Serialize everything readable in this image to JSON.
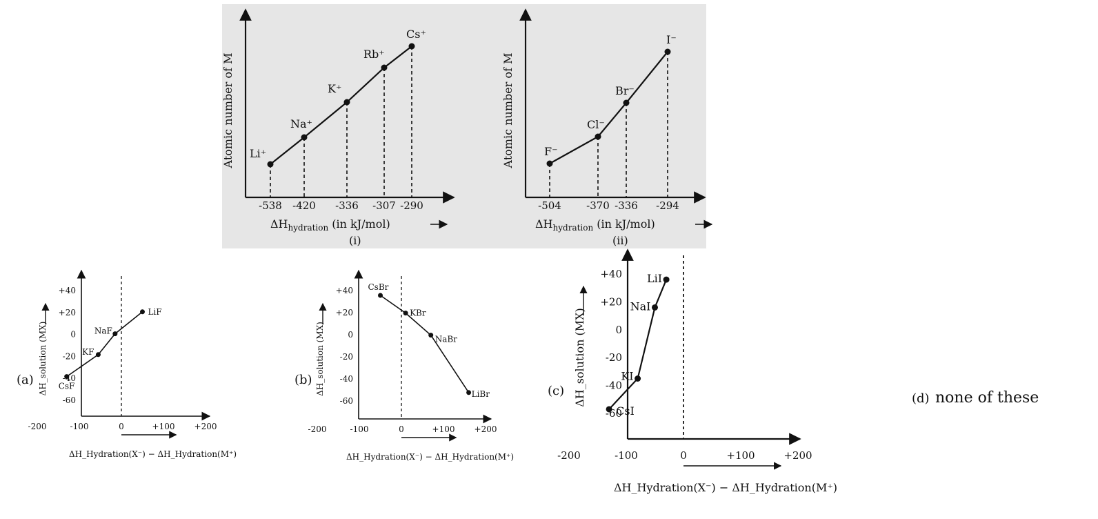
{
  "chart_data": [
    {
      "id": "chart-i",
      "type": "line",
      "caption": "(i)",
      "xlabel": "ΔH",
      "xlabel_sub": "hydration",
      "xlabel_tail": " (in kJ/mol)",
      "ylabel": "Atomic number of M",
      "x_ticks": [
        "-538",
        "-420",
        "-336",
        "-307",
        "-290"
      ],
      "points": [
        {
          "label": "Li+",
          "x": -538
        },
        {
          "label": "Na+",
          "x": -420
        },
        {
          "label": "K+",
          "x": -336
        },
        {
          "label": "Rb+",
          "x": -307
        },
        {
          "label": "Cs+",
          "x": -290
        }
      ]
    },
    {
      "id": "chart-ii",
      "type": "line",
      "caption": "(ii)",
      "xlabel": "ΔH",
      "xlabel_sub": "hydration",
      "xlabel_tail": " (in kJ/mol)",
      "ylabel": "Atomic number of M",
      "x_ticks": [
        "-504",
        "-370",
        "-336",
        "-294"
      ],
      "points": [
        {
          "label": "F−",
          "x": -504
        },
        {
          "label": "Cl−",
          "x": -370
        },
        {
          "label": "Br−",
          "x": -336
        },
        {
          "label": "I−",
          "x": -294
        }
      ]
    },
    {
      "id": "chart-a",
      "type": "line",
      "option": "(a)",
      "xlabel": "ΔH_Hydration(X⁻) − ΔH_Hydration(M⁺)",
      "ylabel": "ΔH_solution (MX)",
      "xlim": [
        -200,
        200
      ],
      "ylim": [
        -60,
        40
      ],
      "x_ticks": [
        "-200",
        "-100",
        "0",
        "+100",
        "+200"
      ],
      "y_ticks": [
        "+40",
        "+20",
        "0",
        "-20",
        "-40",
        "-60"
      ],
      "points": [
        {
          "label": "CsF",
          "x": -130,
          "y": -39
        },
        {
          "label": "KF",
          "x": -55,
          "y": -19
        },
        {
          "label": "NaF",
          "x": -15,
          "y": 0
        },
        {
          "label": "LiF",
          "x": 50,
          "y": 20
        }
      ]
    },
    {
      "id": "chart-b",
      "type": "line",
      "option": "(b)",
      "xlabel": "ΔH_Hydration(X⁻) − ΔH_Hydration(M⁺)",
      "ylabel": "ΔH_solution (MX)",
      "xlim": [
        -200,
        200
      ],
      "ylim": [
        -60,
        40
      ],
      "x_ticks": [
        "-200",
        "-100",
        "0",
        "+100",
        "+200"
      ],
      "y_ticks": [
        "+40",
        "+20",
        "0",
        "-20",
        "-40",
        "-60"
      ],
      "points": [
        {
          "label": "CsBr",
          "x": -50,
          "y": 35
        },
        {
          "label": "KBr",
          "x": 10,
          "y": 19
        },
        {
          "label": "NaBr",
          "x": 70,
          "y": -1
        },
        {
          "label": "LiBr",
          "x": 160,
          "y": -53
        }
      ]
    },
    {
      "id": "chart-c",
      "type": "line",
      "option": "(c)",
      "xlabel": "ΔH_Hydration(X⁻) − ΔH_Hydration(M⁺)",
      "ylabel": "ΔH_solution (MX)",
      "xlim": [
        -200,
        200
      ],
      "ylim": [
        -60,
        40
      ],
      "x_ticks": [
        "-200",
        "-100",
        "0",
        "+100",
        "+200"
      ],
      "y_ticks": [
        "+40",
        "+20",
        "0",
        "-20",
        "-40",
        "-60"
      ],
      "points": [
        {
          "label": "CsI",
          "x": -130,
          "y": -57
        },
        {
          "label": "KI",
          "x": -80,
          "y": -35
        },
        {
          "label": "NaI",
          "x": -50,
          "y": 16
        },
        {
          "label": "LiI",
          "x": -30,
          "y": 36
        }
      ]
    }
  ],
  "option_d": {
    "label": "(d)",
    "text": "none of these"
  },
  "colors": {
    "ink": "#111111",
    "panel_bg": "#e6e6e6"
  }
}
